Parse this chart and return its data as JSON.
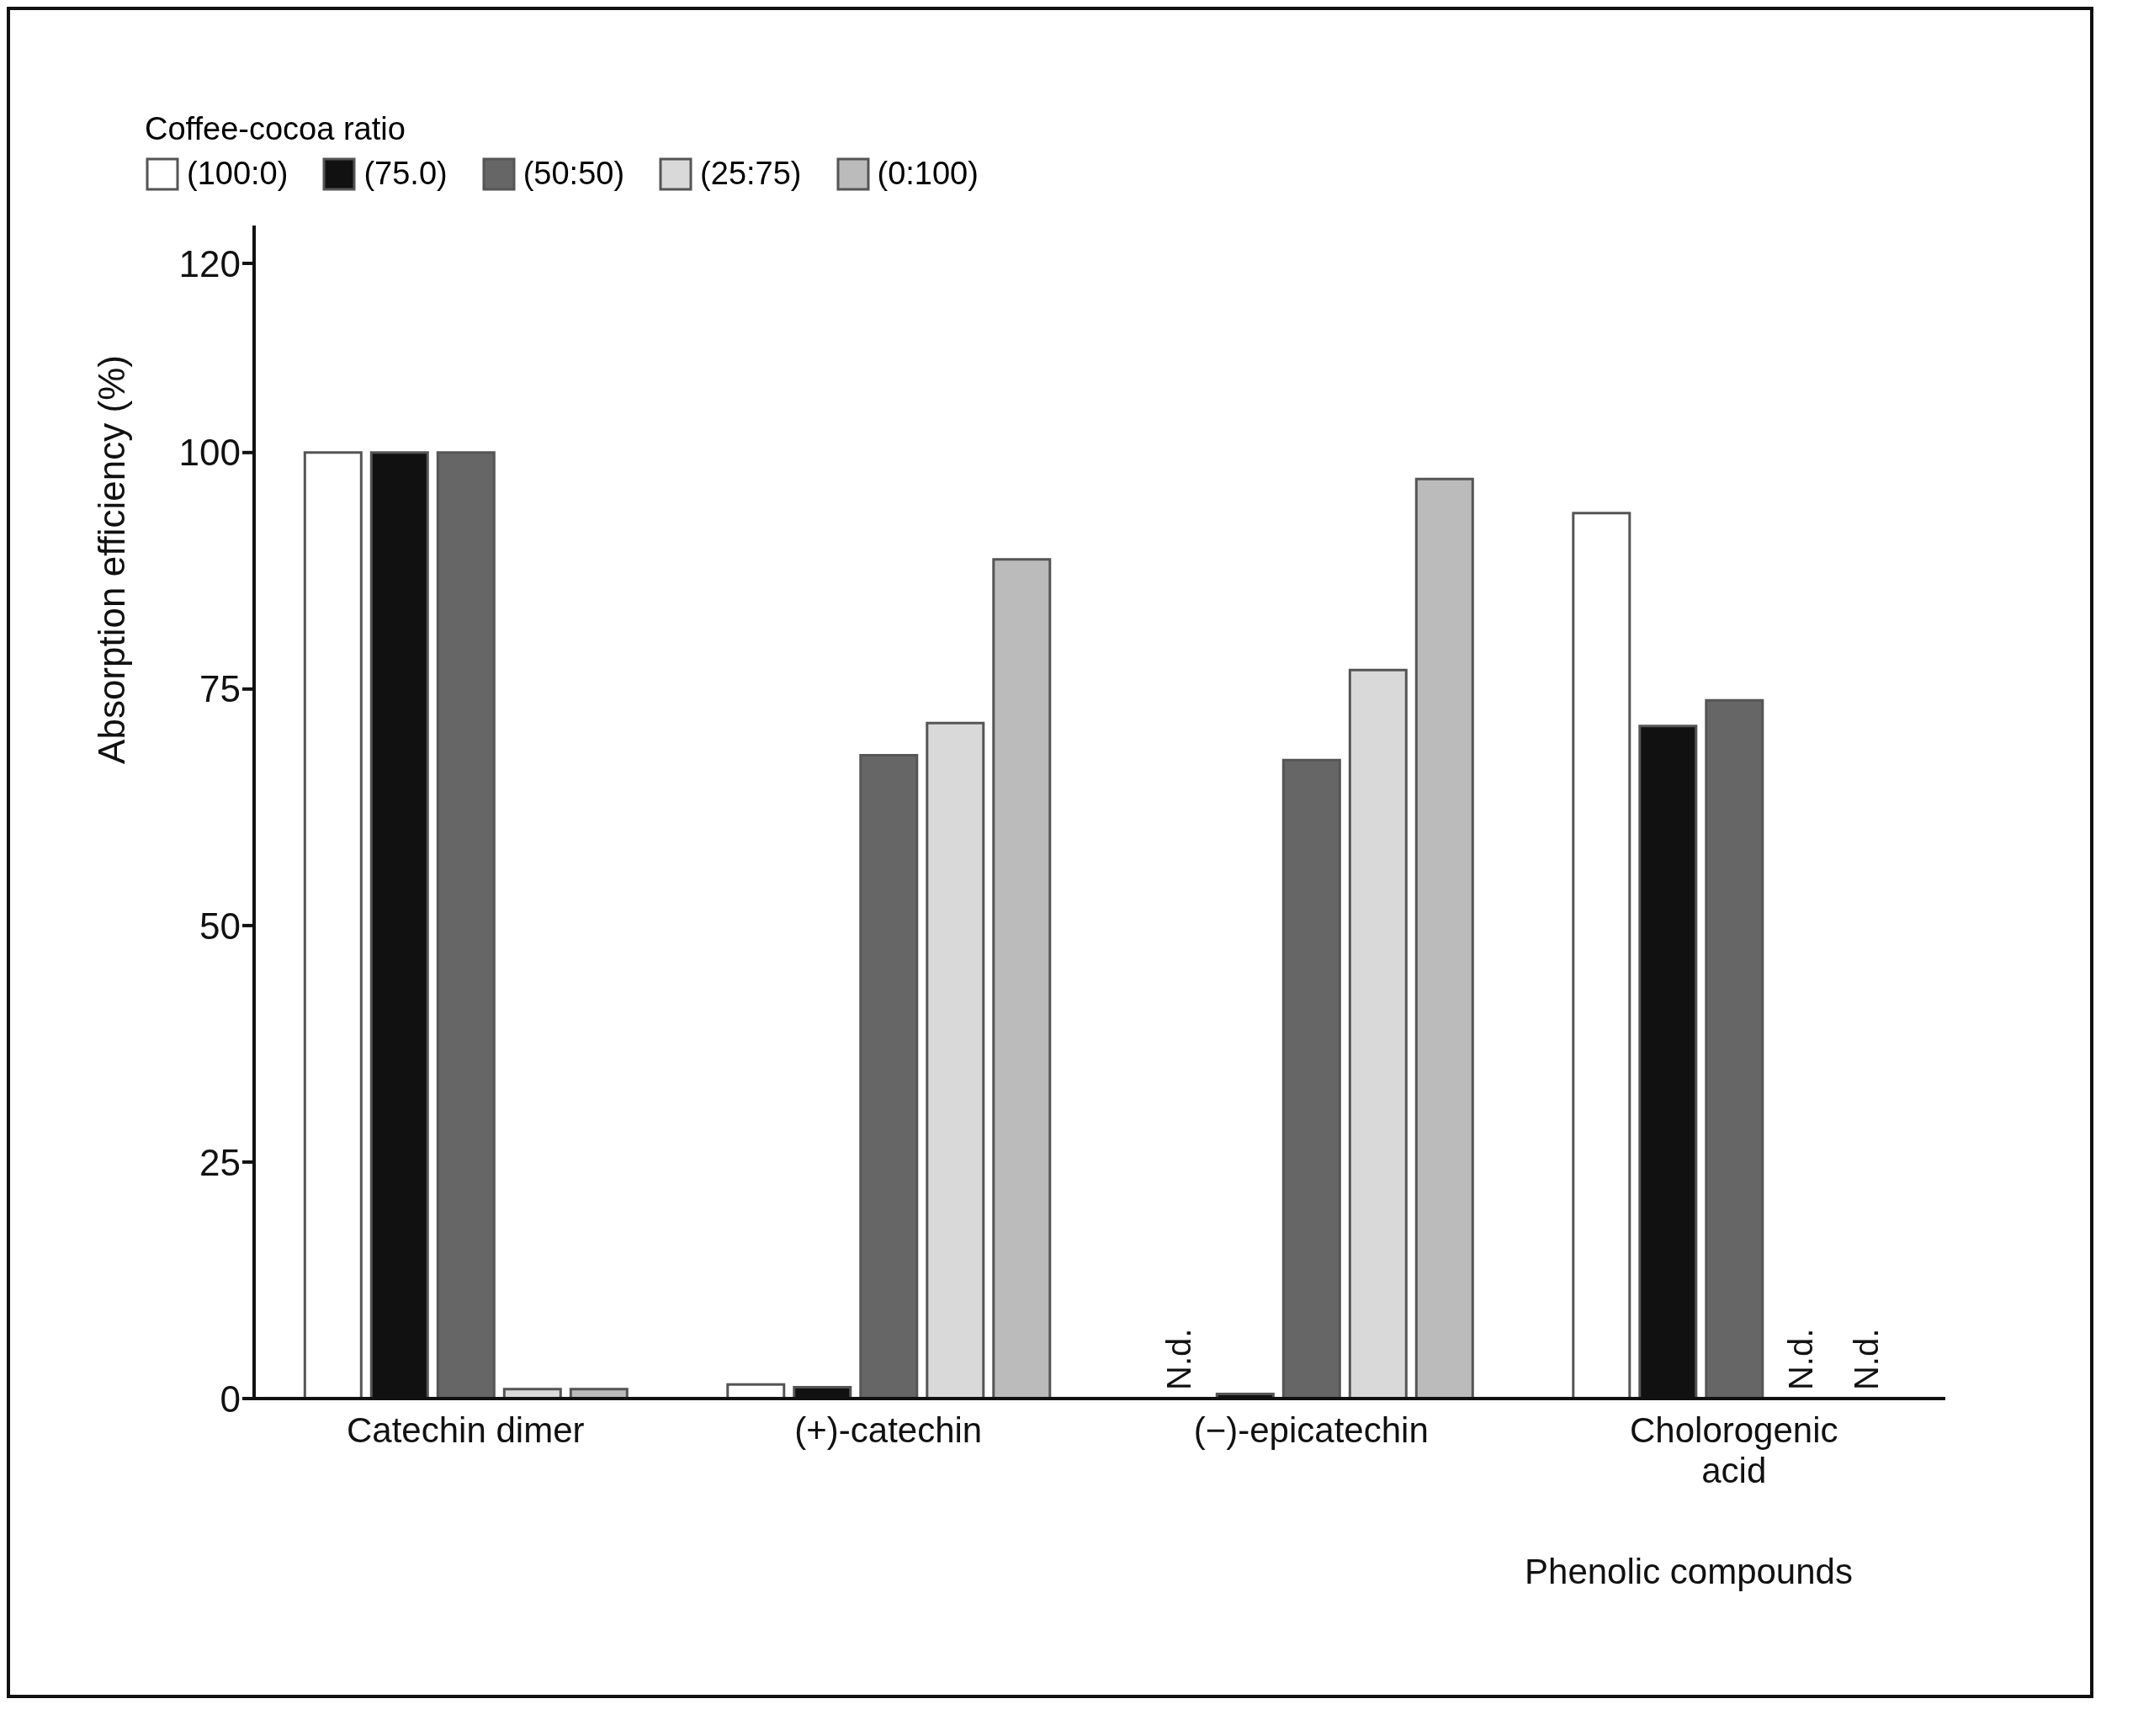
{
  "chart_data": {
    "type": "bar",
    "categories": [
      "Catechin dimer",
      "(+)-catechin",
      "(−)-epicatechin",
      "Cholorogenic acid"
    ],
    "xlabel": "Phenolic compounds",
    "ylabel": "Absorption efficiency (%)",
    "legend_title": "Coffee-cocoa ratio",
    "series": [
      {
        "name": "(100:0)",
        "color": "#ffffff",
        "values": [
          100,
          1.5,
          null,
          93.6
        ],
        "value_labels": [
          null,
          null,
          "N.d.",
          null
        ]
      },
      {
        "name": "(75.0)",
        "color": "#111111",
        "values": [
          100,
          1.2,
          0.5,
          71.1
        ]
      },
      {
        "name": "(50:50)",
        "color": "#666666",
        "values": [
          100,
          68,
          67.5,
          73.8
        ]
      },
      {
        "name": "(25:75)",
        "color": "#d9d9d9",
        "values": [
          1,
          71.4,
          77,
          null
        ],
        "value_labels": [
          null,
          null,
          null,
          "N.d."
        ]
      },
      {
        "name": "(0:100)",
        "color": "#bbbbbb",
        "values": [
          1,
          88.7,
          97.2,
          null
        ],
        "value_labels": [
          null,
          null,
          null,
          "N.d."
        ]
      }
    ],
    "ylim": [
      0,
      124
    ],
    "yticks": [
      0,
      25,
      50,
      75,
      100,
      120
    ],
    "grid": false,
    "legend": "top left"
  }
}
